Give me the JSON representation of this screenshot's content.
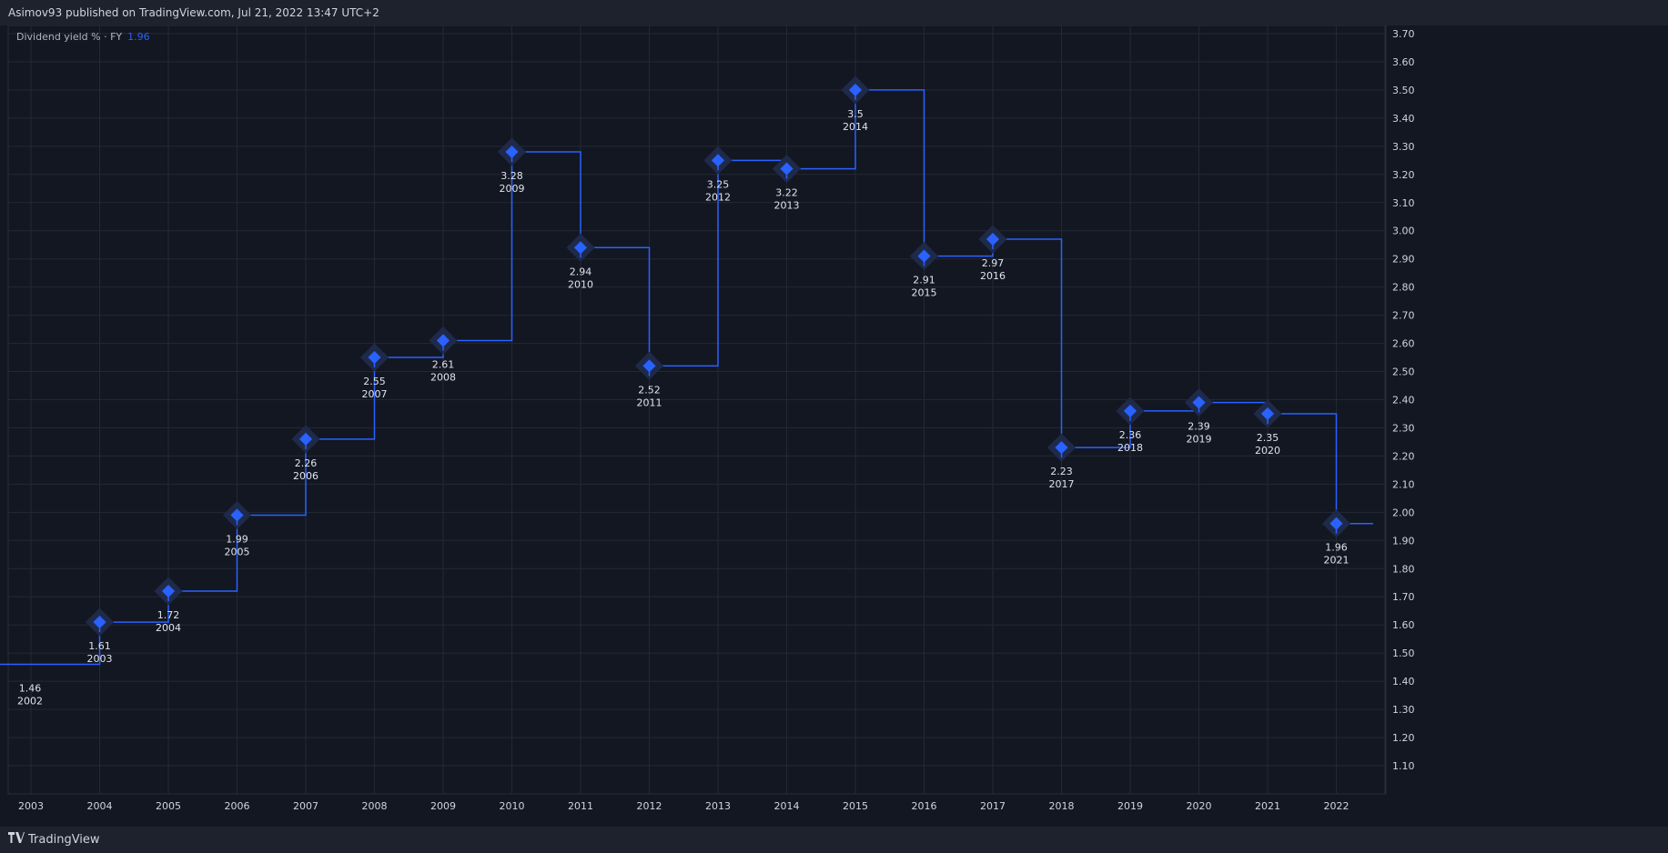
{
  "header": {
    "text": "Asimov93 published on TradingView.com, Jul 21, 2022 13:47 UTC+2"
  },
  "legend": {
    "label": "Dividend yield % · FY",
    "value": "1.96"
  },
  "footer": {
    "brand": "TradingView"
  },
  "colors": {
    "background": "#131722",
    "line": "#2962ff",
    "grid": "#242835",
    "text": "#d1d4dc"
  },
  "chart_data": {
    "type": "line",
    "step": true,
    "title": "",
    "xlabel": "",
    "ylabel": "",
    "x_ticks": [
      "2003",
      "2004",
      "2005",
      "2006",
      "2007",
      "2008",
      "2009",
      "2010",
      "2011",
      "2012",
      "2013",
      "2014",
      "2015",
      "2016",
      "2017",
      "2018",
      "2019",
      "2020",
      "2021",
      "2022"
    ],
    "y_ticks": [
      "3.70",
      "3.60",
      "3.50",
      "3.40",
      "3.30",
      "3.20",
      "3.10",
      "3.00",
      "2.90",
      "2.80",
      "2.70",
      "2.60",
      "2.50",
      "2.40",
      "2.30",
      "2.20",
      "2.10",
      "2.00",
      "1.90",
      "1.80",
      "1.70",
      "1.60",
      "1.50",
      "1.40",
      "1.30",
      "1.20",
      "1.10"
    ],
    "ylim": [
      1.1,
      3.7
    ],
    "grid": true,
    "series": [
      {
        "points": [
          {
            "year": "2002",
            "value": 1.46,
            "label": "1.46"
          },
          {
            "year": "2003",
            "value": 1.61,
            "label": "1.61"
          },
          {
            "year": "2004",
            "value": 1.72,
            "label": "1.72"
          },
          {
            "year": "2005",
            "value": 1.99,
            "label": "1.99"
          },
          {
            "year": "2006",
            "value": 2.26,
            "label": "2.26"
          },
          {
            "year": "2007",
            "value": 2.55,
            "label": "2.55"
          },
          {
            "year": "2008",
            "value": 2.61,
            "label": "2.61"
          },
          {
            "year": "2009",
            "value": 3.28,
            "label": "3.28"
          },
          {
            "year": "2010",
            "value": 2.94,
            "label": "2.94"
          },
          {
            "year": "2011",
            "value": 2.52,
            "label": "2.52"
          },
          {
            "year": "2012",
            "value": 3.25,
            "label": "3.25"
          },
          {
            "year": "2013",
            "value": 3.22,
            "label": "3.22"
          },
          {
            "year": "2014",
            "value": 3.5,
            "label": "3.5"
          },
          {
            "year": "2015",
            "value": 2.91,
            "label": "2.91"
          },
          {
            "year": "2016",
            "value": 2.97,
            "label": "2.97"
          },
          {
            "year": "2017",
            "value": 2.23,
            "label": "2.23"
          },
          {
            "year": "2018",
            "value": 2.36,
            "label": "2.36"
          },
          {
            "year": "2019",
            "value": 2.39,
            "label": "2.39"
          },
          {
            "year": "2020",
            "value": 2.35,
            "label": "2.35"
          },
          {
            "year": "2021",
            "value": 1.96,
            "label": "1.96"
          }
        ]
      }
    ]
  }
}
